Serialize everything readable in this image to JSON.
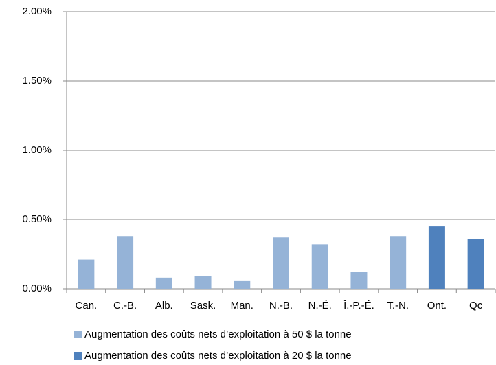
{
  "chart_data": {
    "type": "bar",
    "categories": [
      "Can.",
      "C.-B.",
      "Alb.",
      "Sask.",
      "Man.",
      "N.-B.",
      "N.-É.",
      "Î.-P.-É.",
      "T.-N.",
      "Ont.",
      "Qc"
    ],
    "series": [
      {
        "name": "Augmentation des coûts nets d’exploitation à 50 $ la tonne",
        "color": "#95b3d7",
        "values": [
          0.21,
          0.38,
          0.08,
          0.09,
          0.06,
          0.37,
          0.32,
          0.12,
          0.38,
          null,
          null
        ]
      },
      {
        "name": "Augmentation des coûts nets d’exploitation à 20 $ la tonne",
        "color": "#4f81bd",
        "values": [
          null,
          null,
          null,
          null,
          null,
          null,
          null,
          null,
          null,
          0.45,
          0.36
        ]
      }
    ],
    "ylim": [
      0,
      2
    ],
    "yticks": [
      {
        "value": 0,
        "label": "0.00%"
      },
      {
        "value": 0.5,
        "label": "0.50%"
      },
      {
        "value": 1,
        "label": "1.00%"
      },
      {
        "value": 1.5,
        "label": "1.50%"
      },
      {
        "value": 2,
        "label": "2.00%"
      }
    ],
    "grid": true,
    "legend": "bottom"
  }
}
